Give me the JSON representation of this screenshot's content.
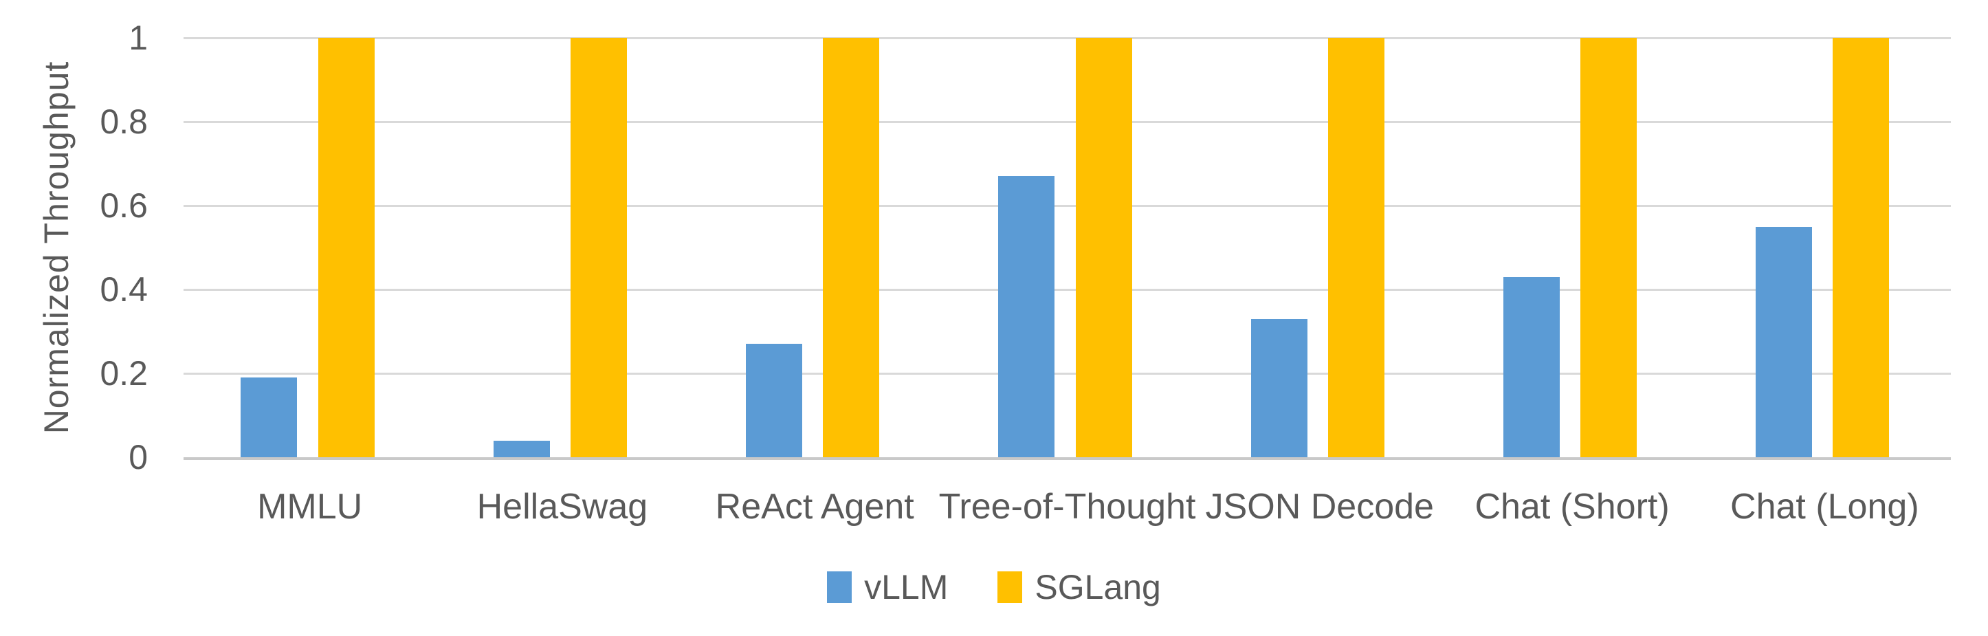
{
  "chart_data": {
    "type": "bar",
    "title": "",
    "categories": [
      "MMLU",
      "HellaSwag",
      "ReAct Agent",
      "Tree-of-Thought",
      "JSON Decode",
      "Chat (Short)",
      "Chat (Long)"
    ],
    "series": [
      {
        "name": "vLLM",
        "color": "#5B9BD5",
        "values": [
          0.19,
          0.04,
          0.27,
          0.67,
          0.33,
          0.43,
          0.55
        ]
      },
      {
        "name": "SGLang",
        "color": "#FFC000",
        "values": [
          1,
          1,
          1,
          1,
          1,
          1,
          1
        ]
      }
    ],
    "xlabel": "",
    "ylabel": "Normalized Throughput",
    "ylim": [
      0,
      1
    ],
    "yticks": [
      0,
      0.2,
      0.4,
      0.6,
      0.8,
      1
    ],
    "ytick_labels": [
      "0",
      "0.2",
      "0.4",
      "0.6",
      "0.8",
      "1"
    ],
    "grid": "horizontal",
    "legend_position": "bottom"
  },
  "colors": {
    "text": "#595959",
    "gridline": "#D9D9D9",
    "axis_line": "#C9C9C9",
    "background": "#FFFFFF"
  }
}
